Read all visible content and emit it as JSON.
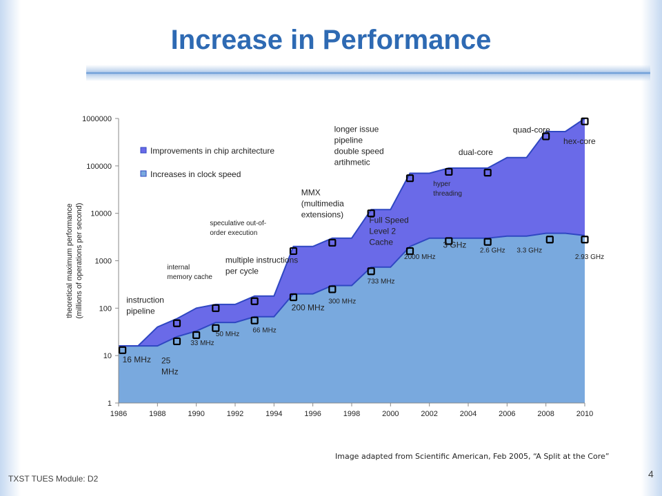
{
  "slide": {
    "title": "Increase in Performance",
    "footer_left": "TXST TUES Module: D2",
    "credit": "Image adapted from Scientific American, Feb 2005, “A Split at the Core”",
    "page_number": "4"
  },
  "colors": {
    "clock_fill": "#79a9de",
    "arch_fill": "#6a6ae8",
    "boundary_line": "#2f47c2",
    "marker_stroke": "#000000",
    "title": "#2e6ab3"
  },
  "chart_data": {
    "type": "area",
    "title": "",
    "ylabel": "theoretical maximum performance (millions of operations per second)",
    "ylabel_lines": [
      "theoretical maximum performance",
      "(millions of operations per second)"
    ],
    "xlabel": "",
    "xlim": [
      1986,
      2010
    ],
    "ylim": [
      1,
      1000000
    ],
    "yscale": "log",
    "x_ticks": [
      1986,
      1988,
      1990,
      1992,
      1994,
      1996,
      1998,
      2000,
      2002,
      2004,
      2006,
      2008,
      2010
    ],
    "y_ticks": [
      1,
      10,
      100,
      1000,
      10000,
      100000,
      1000000
    ],
    "y_tick_labels": [
      "1",
      "10",
      "100",
      "1000",
      "10000",
      "100000",
      "1000000"
    ],
    "legend": {
      "position": "top-left",
      "entries": [
        "Improvements in chip architecture",
        "Increases in clock speed"
      ]
    },
    "series": [
      {
        "name": "Improvements in chip architecture",
        "x": [
          1986,
          1987,
          1988,
          1989,
          1990,
          1991,
          1992,
          1993,
          1994,
          1995,
          1996,
          1997,
          1998,
          1999,
          2000,
          2001,
          2002,
          2003,
          2004,
          2005,
          2006,
          2007,
          2008,
          2009,
          2010
        ],
        "y": [
          16,
          16,
          40,
          60,
          100,
          120,
          120,
          180,
          180,
          2000,
          2000,
          3000,
          3000,
          12000,
          12000,
          70000,
          70000,
          90000,
          90000,
          90000,
          150000,
          150000,
          530000,
          530000,
          1000000
        ]
      },
      {
        "name": "Increases in clock speed",
        "x": [
          1986,
          1987,
          1988,
          1989,
          1990,
          1991,
          1992,
          1993,
          1994,
          1995,
          1996,
          1997,
          1998,
          1999,
          2000,
          2001,
          2002,
          2003,
          2004,
          2005,
          2006,
          2007,
          2008,
          2009,
          2010
        ],
        "y": [
          16,
          16,
          16,
          25,
          33,
          50,
          50,
          66,
          66,
          200,
          200,
          300,
          300,
          733,
          733,
          2000,
          3000,
          3000,
          3000,
          3000,
          3300,
          3300,
          3800,
          3800,
          3400
        ]
      }
    ],
    "markers": [
      {
        "x": 1986.2,
        "y": 13
      },
      {
        "x": 1989,
        "y": 20
      },
      {
        "x": 1990,
        "y": 27
      },
      {
        "x": 1991,
        "y": 38
      },
      {
        "x": 1993,
        "y": 55
      },
      {
        "x": 1995,
        "y": 170
      },
      {
        "x": 1997,
        "y": 250
      },
      {
        "x": 1999,
        "y": 600
      },
      {
        "x": 2001,
        "y": 1600
      },
      {
        "x": 2003,
        "y": 2600
      },
      {
        "x": 2005,
        "y": 2500
      },
      {
        "x": 2008.2,
        "y": 2800
      },
      {
        "x": 2010,
        "y": 2800
      },
      {
        "x": 1989,
        "y": 48
      },
      {
        "x": 1991,
        "y": 100
      },
      {
        "x": 1993,
        "y": 140
      },
      {
        "x": 1995,
        "y": 1600
      },
      {
        "x": 1997,
        "y": 2400
      },
      {
        "x": 1999,
        "y": 10000
      },
      {
        "x": 2001,
        "y": 55000
      },
      {
        "x": 2003,
        "y": 75000
      },
      {
        "x": 2005,
        "y": 72000
      },
      {
        "x": 2008,
        "y": 420000
      },
      {
        "x": 2010,
        "y": 870000
      }
    ],
    "annotations": [
      {
        "text": [
          "16 MHz"
        ],
        "x": 1986.2,
        "y": 7.2,
        "size": 12
      },
      {
        "text": [
          "25",
          "MHz"
        ],
        "x": 1988.2,
        "y": 6.8,
        "size": 12
      },
      {
        "text": [
          "33 MHz"
        ],
        "x": 1989.7,
        "y": 16.5,
        "size": 10
      },
      {
        "text": [
          "50 MHz"
        ],
        "x": 1991.0,
        "y": 25.5,
        "size": 10
      },
      {
        "text": [
          "66 MHz"
        ],
        "x": 1992.9,
        "y": 31,
        "size": 10
      },
      {
        "text": [
          "200 MHz"
        ],
        "x": 1994.9,
        "y": 90,
        "size": 12
      },
      {
        "text": [
          "300 MHz"
        ],
        "x": 1996.8,
        "y": 125,
        "size": 10
      },
      {
        "text": [
          "733 MHz"
        ],
        "x": 1998.8,
        "y": 330,
        "size": 10
      },
      {
        "text": [
          "2000 MHz"
        ],
        "x": 2000.7,
        "y": 1080,
        "size": 10
      },
      {
        "text": [
          "3 GHz"
        ],
        "x": 2002.7,
        "y": 1900,
        "size": 12
      },
      {
        "text": [
          "2.6 GHz"
        ],
        "x": 2004.6,
        "y": 1500,
        "size": 10
      },
      {
        "text": [
          "3.3 GHz"
        ],
        "x": 2006.5,
        "y": 1500,
        "size": 10
      },
      {
        "text": [
          "2.93 GHz"
        ],
        "x": 2009.5,
        "y": 1080,
        "size": 10
      },
      {
        "text": [
          "instruction",
          "pipeline"
        ],
        "x": 1986.4,
        "y": 130,
        "size": 12
      },
      {
        "text": [
          "internal",
          "memory cache"
        ],
        "x": 1988.5,
        "y": 660,
        "size": 10
      },
      {
        "text": [
          "multiple instructions",
          "per cycle"
        ],
        "x": 1991.5,
        "y": 900,
        "size": 12
      },
      {
        "text": [
          "speculative out-of-",
          "order execution"
        ],
        "x": 1990.7,
        "y": 5600,
        "size": 10
      },
      {
        "text": [
          "MMX",
          "(multimedia",
          "extensions)"
        ],
        "x": 1995.4,
        "y": 24000,
        "size": 12
      },
      {
        "text": [
          "Full Speed",
          "Level 2",
          "Cache"
        ],
        "x": 1998.9,
        "y": 6300,
        "size": 12
      },
      {
        "text": [
          "longer issue",
          "pipeline",
          "double speed",
          "artihmetic"
        ],
        "x": 1997.1,
        "y": 520000,
        "size": 12
      },
      {
        "text": [
          "hyper",
          "threading"
        ],
        "x": 2002.2,
        "y": 38000,
        "size": 10
      },
      {
        "text": [
          "dual-core"
        ],
        "x": 2003.5,
        "y": 170000,
        "size": 12
      },
      {
        "text": [
          "quad-core"
        ],
        "x": 2006.3,
        "y": 500000,
        "size": 12
      },
      {
        "text": [
          "hex-core"
        ],
        "x": 2008.9,
        "y": 290000,
        "size": 12
      }
    ]
  }
}
